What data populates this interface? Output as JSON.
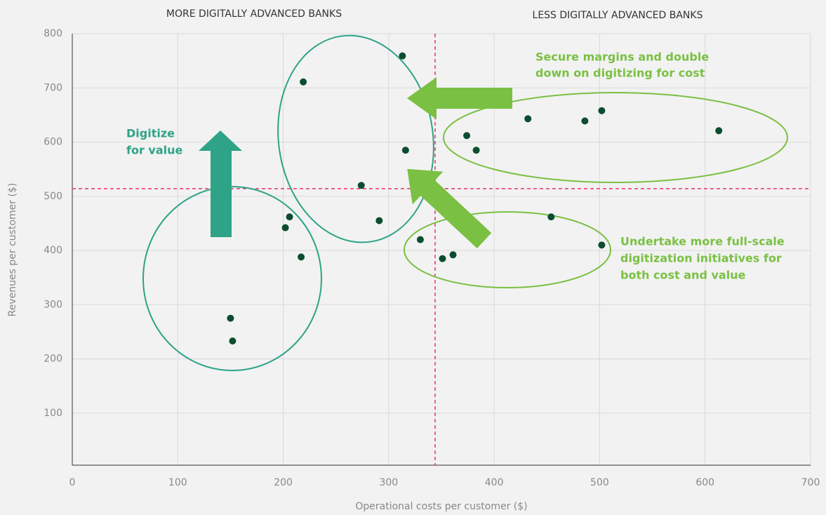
{
  "chart_data": {
    "type": "scatter",
    "xlabel": "Operational costs per customer ($)",
    "ylabel": "Revenues per customer ($)",
    "xlim": [
      0,
      700
    ],
    "xticks": [
      0,
      100,
      200,
      300,
      400,
      500,
      600,
      700
    ],
    "ylim": [
      0,
      800
    ],
    "yticks": [
      100,
      200,
      300,
      400,
      500,
      600,
      700,
      800
    ],
    "grid": true,
    "color": "#0b4d2e",
    "x": [
      219,
      313,
      274,
      291,
      316,
      330,
      351,
      361,
      374,
      383,
      432,
      486,
      502,
      613,
      454,
      502,
      206,
      202,
      217,
      150,
      152
    ],
    "values": [
      711,
      759,
      520,
      455,
      585,
      420,
      385,
      392,
      612,
      585,
      643,
      639,
      658,
      621,
      462,
      410,
      462,
      442,
      388,
      275,
      233
    ],
    "vline": 344,
    "hline": 514,
    "reference_color": "#e8336a",
    "annotations": [
      {
        "lines": [
          "MORE DIGITALLY ADVANCED BANKS"
        ]
      },
      {
        "lines": [
          "LESS DIGITALLY ADVANCED BANKS"
        ]
      },
      {
        "lines": [
          "Digitize",
          "for value"
        ]
      },
      {
        "lines": [
          "Secure margins and double",
          "down on digitizing for cost"
        ]
      },
      {
        "lines": [
          "Undertake more full-scale",
          "digitization initiatives for",
          "both cost and value"
        ]
      }
    ]
  }
}
